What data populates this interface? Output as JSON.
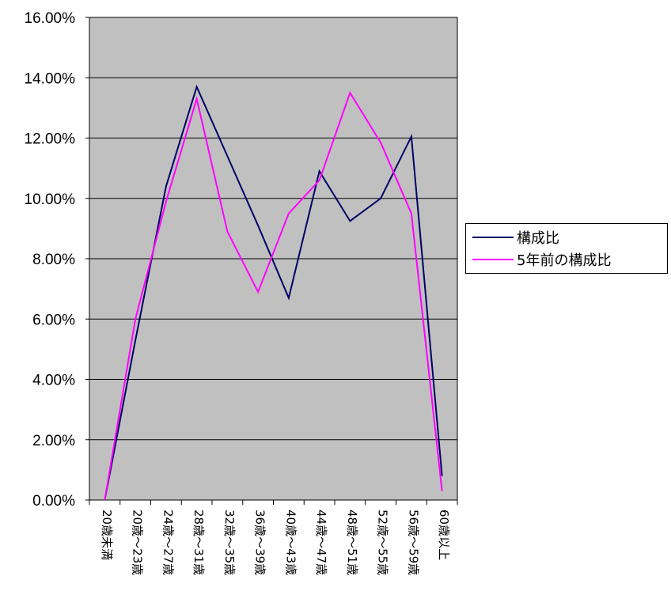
{
  "chart_data": {
    "type": "line",
    "categories": [
      "20歳未満",
      "20歳～23歳",
      "24歳～27歳",
      "28歳～31歳",
      "32歳～35歳",
      "36歳～39歳",
      "40歳～43歳",
      "44歳～47歳",
      "48歳～51歳",
      "52歳～55歳",
      "56歳～59歳",
      "60歳以上"
    ],
    "series": [
      {
        "name": "構成比",
        "color": "#000066",
        "values": [
          0.0,
          5.3,
          10.4,
          13.7,
          11.4,
          9.1,
          6.7,
          10.9,
          9.25,
          10.0,
          12.05,
          0.8
        ]
      },
      {
        "name": "5年前の構成比",
        "color": "#ff00ff",
        "values": [
          0.0,
          6.0,
          9.9,
          13.3,
          8.9,
          6.9,
          9.5,
          10.6,
          13.5,
          11.85,
          9.5,
          0.3
        ]
      }
    ],
    "yticks": [
      "0.00%",
      "2.00%",
      "4.00%",
      "6.00%",
      "8.00%",
      "10.00%",
      "12.00%",
      "14.00%",
      "16.00%"
    ],
    "ylim": [
      0,
      16
    ],
    "grid": true,
    "plot_background": "#c0c0c0",
    "legend_position": "right"
  }
}
